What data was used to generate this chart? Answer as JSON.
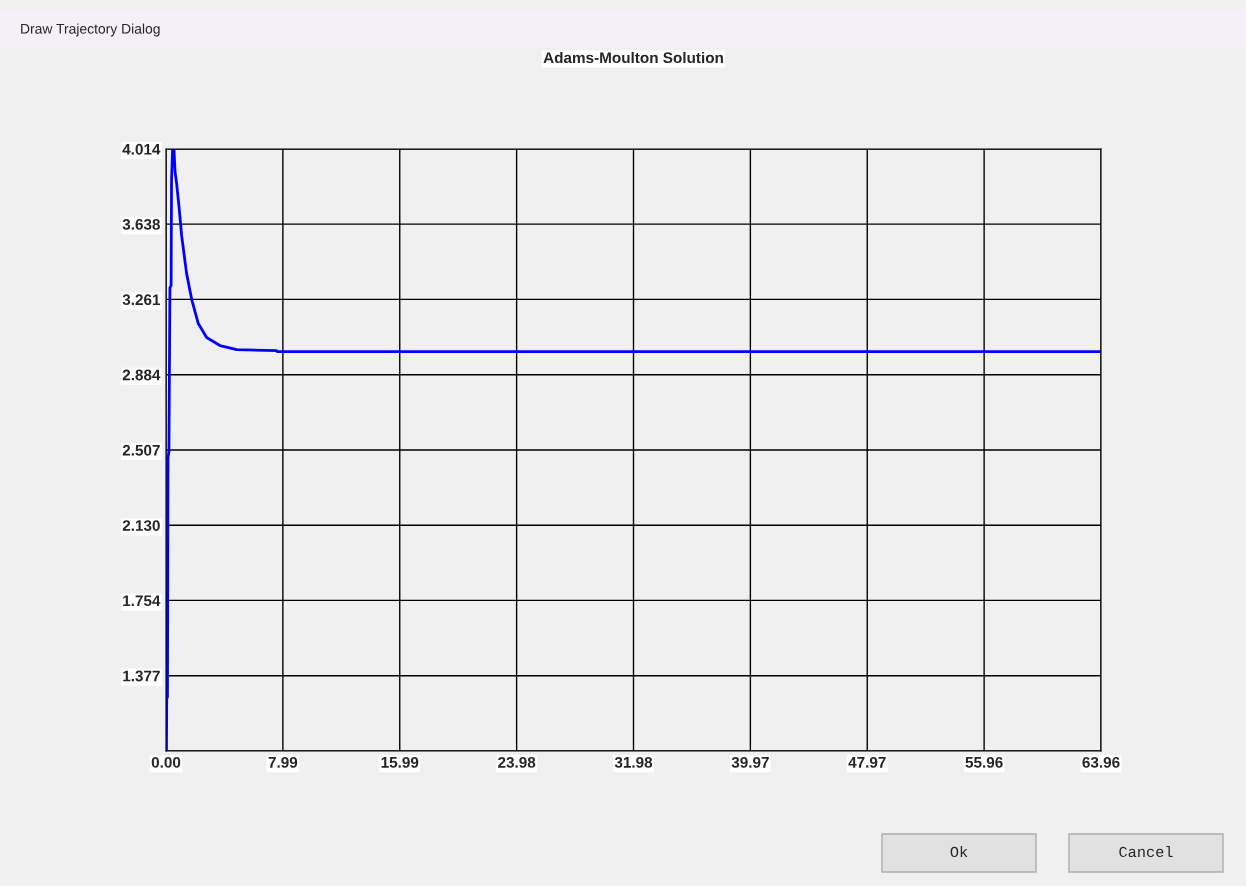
{
  "chart_data": {
    "type": "line",
    "title": "Adams-Moulton Solution",
    "annotations": [
      "Draw Trajectory Dialog",
      "Ok",
      "Cancel"
    ],
    "series": [
      {
        "color": "#0000ff",
        "x": [
          0,
          0.03,
          0.05,
          0.1,
          0.14,
          0.2,
          0.27,
          0.35,
          0.38,
          0.45,
          0.55,
          0.62,
          0.73,
          0.91,
          1.07,
          1.41,
          1.76,
          2.21,
          2.78,
          3.69,
          4.84,
          7.57,
          7.6,
          63.96
        ],
        "values": [
          1.0,
          1.0,
          1.265,
          1.27,
          2.47,
          2.5,
          3.32,
          3.33,
          3.86,
          4.01,
          4.01,
          3.9,
          3.84,
          3.71,
          3.58,
          3.39,
          3.26,
          3.14,
          3.07,
          3.03,
          3.01,
          3.004,
          3.0,
          3.0
        ]
      }
    ],
    "xlim": [
      0,
      63.96
    ],
    "ylim": [
      1.0,
      4.014
    ],
    "xticks": [
      {
        "value": 0,
        "label": "0.00"
      },
      {
        "value": 7.995,
        "label": "7.99"
      },
      {
        "value": 15.99,
        "label": "15.99"
      },
      {
        "value": 23.985,
        "label": "23.98"
      },
      {
        "value": 31.98,
        "label": "31.98"
      },
      {
        "value": 39.975,
        "label": "39.97"
      },
      {
        "value": 47.97,
        "label": "47.97"
      },
      {
        "value": 55.965,
        "label": "55.96"
      },
      {
        "value": 63.96,
        "label": "63.96"
      }
    ],
    "yticks": [
      {
        "value": 1.0,
        "label": null
      },
      1.377,
      1.754,
      {
        "value": 2.13,
        "label": "2.130"
      },
      2.507,
      2.884,
      3.261,
      3.638,
      4.014
    ],
    "grid": true,
    "marker": "none",
    "line_style": "solid"
  }
}
